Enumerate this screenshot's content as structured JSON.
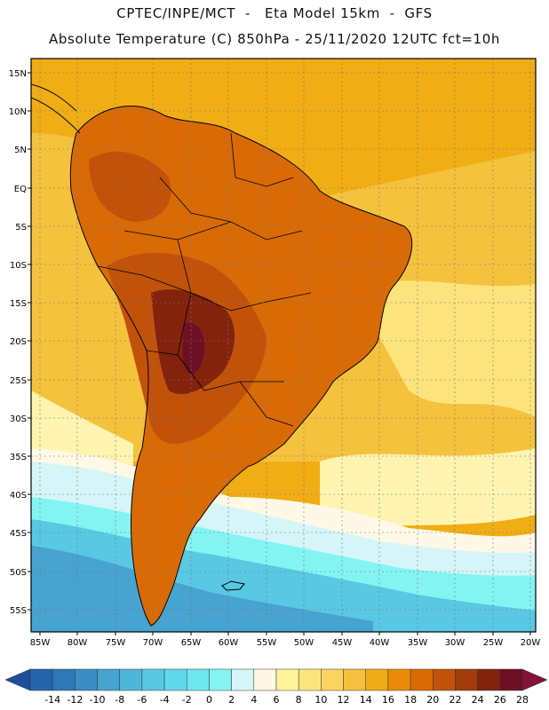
{
  "header": {
    "line1": "CPTEC/INPE/MCT  -   Eta Model 15km  -  GFS",
    "line2": "Absolute Temperature (C) 850hPa - 25/11/2020 12UTC fct=10h"
  },
  "axes": {
    "lat_labels": [
      "15N",
      "10N",
      "5N",
      "EQ",
      "5S",
      "10S",
      "15S",
      "20S",
      "25S",
      "30S",
      "35S",
      "40S",
      "45S",
      "50S",
      "55S"
    ],
    "lon_labels": [
      "85W",
      "80W",
      "75W",
      "70W",
      "65W",
      "60W",
      "55W",
      "50W",
      "45W",
      "40W",
      "35W",
      "30W",
      "25W",
      "20W"
    ]
  },
  "colorbar": {
    "ticks": [
      "-14",
      "-12",
      "-10",
      "-8",
      "-6",
      "-4",
      "-2",
      "0",
      "2",
      "4",
      "6",
      "8",
      "10",
      "12",
      "14",
      "16",
      "18",
      "20",
      "22",
      "24",
      "26",
      "28"
    ],
    "colors": [
      "#1d4e9b",
      "#2564a8",
      "#2e78b6",
      "#3b8ec4",
      "#47a3cf",
      "#4fb6da",
      "#58c8e3",
      "#60d8ea",
      "#6fe7ee",
      "#84f4f3",
      "#d5f5f8",
      "#fff8e6",
      "#fff39b",
      "#fde57e",
      "#fad462",
      "#f5c03d",
      "#f0ac16",
      "#e98a0a",
      "#d96b07",
      "#c25209",
      "#a33c0d",
      "#83220d",
      "#6e1025",
      "#801538"
    ]
  },
  "palette": {
    "ocean_tropical": "#f0ad14",
    "ocean_subtrop": "#f5c23d",
    "ocean_yellow": "#fde37c",
    "ocean_pale": "#fff3b0",
    "ocean_cream": "#fff8e6",
    "ocean_pale_blue": "#d5f5f8",
    "ocean_cyan": "#84f4f3",
    "ocean_teal": "#58c8e3",
    "ocean_mid_blue": "#47a3cf",
    "land_orange": "#d96b07",
    "land_red": "#c25209",
    "land_dark": "#83220d",
    "land_max": "#6e1025",
    "coast": "#000000"
  }
}
